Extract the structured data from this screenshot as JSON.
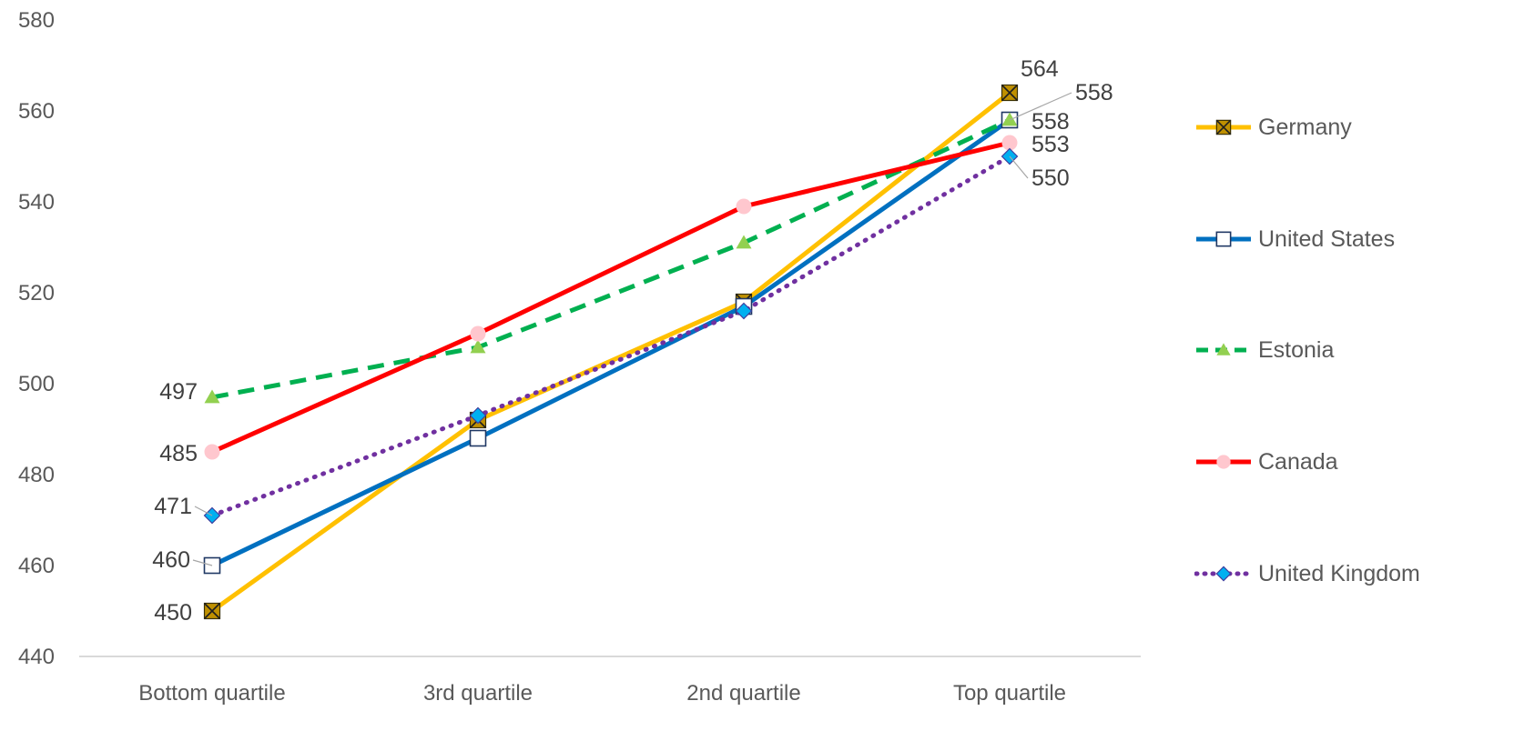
{
  "chart_data": {
    "type": "line",
    "categories": [
      "Bottom quartile",
      "3rd quartile",
      "2nd quartile",
      "Top quartile"
    ],
    "ylim": [
      440,
      580
    ],
    "yticks": [
      440,
      460,
      480,
      500,
      520,
      540,
      560,
      580
    ],
    "grid": false,
    "legend_position": "right",
    "series": [
      {
        "name": "Germany",
        "values": [
          450,
          492,
          518,
          564
        ],
        "color": "#FFC000",
        "dash": "solid",
        "marker": "square-x",
        "marker_fill": "#BF9000"
      },
      {
        "name": "United States",
        "values": [
          460,
          488,
          517,
          558
        ],
        "color": "#0070C0",
        "dash": "solid",
        "marker": "square",
        "marker_fill": "#FFFFFF"
      },
      {
        "name": "Estonia",
        "values": [
          497,
          508,
          531,
          558
        ],
        "color": "#00B050",
        "dash": "dashed",
        "marker": "triangle",
        "marker_fill": "#92D050"
      },
      {
        "name": "Canada",
        "values": [
          485,
          511,
          539,
          553
        ],
        "color": "#FF0000",
        "dash": "solid",
        "marker": "circle",
        "marker_fill": "#FFC7CE"
      },
      {
        "name": "United Kingdom",
        "values": [
          471,
          493,
          516,
          550
        ],
        "color": "#7030A0",
        "dash": "dotted",
        "marker": "diamond",
        "marker_fill": "#00B0F0"
      }
    ],
    "data_labels": [
      {
        "series": "Germany",
        "index": 0,
        "text": "450"
      },
      {
        "series": "United States",
        "index": 0,
        "text": "460"
      },
      {
        "series": "United Kingdom",
        "index": 0,
        "text": "471"
      },
      {
        "series": "Canada",
        "index": 0,
        "text": "485"
      },
      {
        "series": "Estonia",
        "index": 0,
        "text": "497"
      },
      {
        "series": "Germany",
        "index": 3,
        "text": "564"
      },
      {
        "series": "United States",
        "index": 3,
        "text": "558"
      },
      {
        "series": "Estonia",
        "index": 3,
        "text": "558"
      },
      {
        "series": "Canada",
        "index": 3,
        "text": "553"
      },
      {
        "series": "United Kingdom",
        "index": 3,
        "text": "550"
      }
    ]
  }
}
